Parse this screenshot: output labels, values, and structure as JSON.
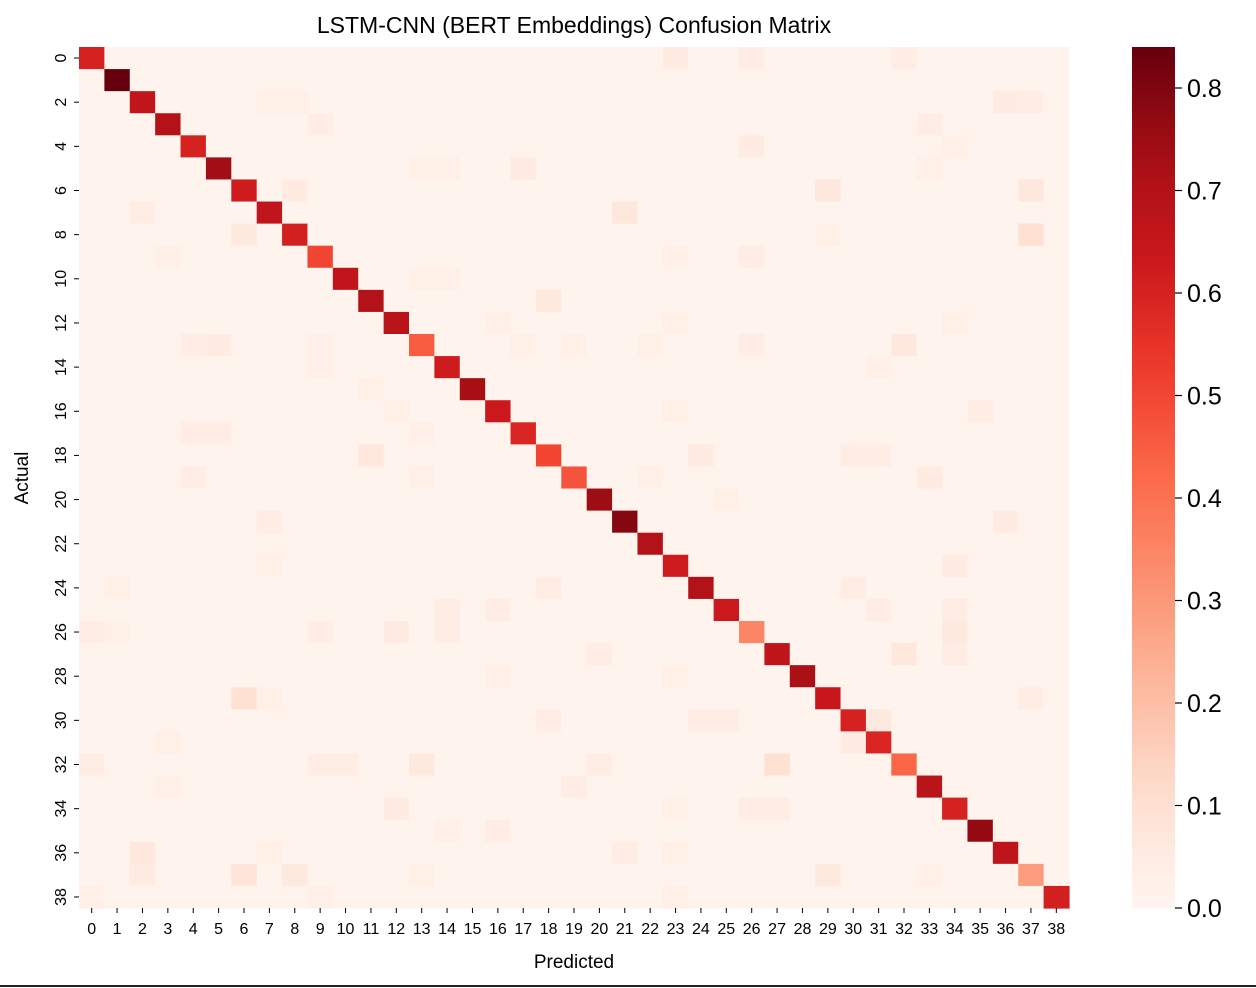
{
  "chart_data": {
    "type": "heatmap",
    "title": "LSTM-CNN (BERT Embeddings) Confusion Matrix",
    "xlabel": "Predicted",
    "ylabel": "Actual",
    "classes": 39,
    "x_tick_labels": [
      "0",
      "1",
      "2",
      "3",
      "4",
      "5",
      "6",
      "7",
      "8",
      "9",
      "10",
      "11",
      "12",
      "13",
      "14",
      "15",
      "16",
      "17",
      "18",
      "19",
      "20",
      "21",
      "22",
      "23",
      "24",
      "25",
      "26",
      "27",
      "28",
      "29",
      "30",
      "31",
      "32",
      "33",
      "34",
      "35",
      "36",
      "37",
      "38"
    ],
    "y_tick_labels": [
      "0",
      "2",
      "4",
      "6",
      "8",
      "10",
      "12",
      "14",
      "16",
      "18",
      "20",
      "22",
      "24",
      "26",
      "28",
      "30",
      "32",
      "34",
      "36",
      "38"
    ],
    "diagonal": [
      0.6,
      0.84,
      0.66,
      0.7,
      0.6,
      0.74,
      0.62,
      0.66,
      0.61,
      0.5,
      0.66,
      0.7,
      0.68,
      0.45,
      0.62,
      0.73,
      0.63,
      0.59,
      0.5,
      0.47,
      0.75,
      0.79,
      0.7,
      0.62,
      0.7,
      0.63,
      0.35,
      0.67,
      0.72,
      0.64,
      0.6,
      0.59,
      0.43,
      0.68,
      0.6,
      0.76,
      0.67,
      0.29,
      0.61
    ],
    "off_diagonal": [
      {
        "r": 0,
        "c": 23,
        "v": 0.05
      },
      {
        "r": 0,
        "c": 26,
        "v": 0.04
      },
      {
        "r": 0,
        "c": 32,
        "v": 0.04
      },
      {
        "r": 2,
        "c": 7,
        "v": 0.03
      },
      {
        "r": 2,
        "c": 8,
        "v": 0.03
      },
      {
        "r": 2,
        "c": 36,
        "v": 0.05
      },
      {
        "r": 2,
        "c": 37,
        "v": 0.04
      },
      {
        "r": 3,
        "c": 9,
        "v": 0.04
      },
      {
        "r": 3,
        "c": 33,
        "v": 0.04
      },
      {
        "r": 4,
        "c": 26,
        "v": 0.05
      },
      {
        "r": 4,
        "c": 34,
        "v": 0.03
      },
      {
        "r": 5,
        "c": 17,
        "v": 0.05
      },
      {
        "r": 5,
        "c": 13,
        "v": 0.03
      },
      {
        "r": 5,
        "c": 14,
        "v": 0.03
      },
      {
        "r": 5,
        "c": 33,
        "v": 0.03
      },
      {
        "r": 6,
        "c": 8,
        "v": 0.05
      },
      {
        "r": 6,
        "c": 29,
        "v": 0.07
      },
      {
        "r": 6,
        "c": 37,
        "v": 0.07
      },
      {
        "r": 7,
        "c": 21,
        "v": 0.07
      },
      {
        "r": 7,
        "c": 2,
        "v": 0.04
      },
      {
        "r": 8,
        "c": 6,
        "v": 0.06
      },
      {
        "r": 8,
        "c": 37,
        "v": 0.1
      },
      {
        "r": 8,
        "c": 29,
        "v": 0.03
      },
      {
        "r": 9,
        "c": 3,
        "v": 0.03
      },
      {
        "r": 9,
        "c": 26,
        "v": 0.04
      },
      {
        "r": 9,
        "c": 23,
        "v": 0.03
      },
      {
        "r": 10,
        "c": 13,
        "v": 0.03
      },
      {
        "r": 10,
        "c": 14,
        "v": 0.03
      },
      {
        "r": 11,
        "c": 18,
        "v": 0.06
      },
      {
        "r": 12,
        "c": 16,
        "v": 0.03
      },
      {
        "r": 12,
        "c": 23,
        "v": 0.03
      },
      {
        "r": 12,
        "c": 34,
        "v": 0.03
      },
      {
        "r": 13,
        "c": 4,
        "v": 0.04
      },
      {
        "r": 13,
        "c": 5,
        "v": 0.05
      },
      {
        "r": 13,
        "c": 9,
        "v": 0.03
      },
      {
        "r": 13,
        "c": 17,
        "v": 0.03
      },
      {
        "r": 13,
        "c": 19,
        "v": 0.03
      },
      {
        "r": 13,
        "c": 22,
        "v": 0.03
      },
      {
        "r": 13,
        "c": 26,
        "v": 0.04
      },
      {
        "r": 13,
        "c": 32,
        "v": 0.07
      },
      {
        "r": 14,
        "c": 9,
        "v": 0.03
      },
      {
        "r": 14,
        "c": 31,
        "v": 0.03
      },
      {
        "r": 15,
        "c": 11,
        "v": 0.03
      },
      {
        "r": 16,
        "c": 12,
        "v": 0.03
      },
      {
        "r": 16,
        "c": 23,
        "v": 0.03
      },
      {
        "r": 16,
        "c": 35,
        "v": 0.04
      },
      {
        "r": 17,
        "c": 4,
        "v": 0.04
      },
      {
        "r": 17,
        "c": 5,
        "v": 0.04
      },
      {
        "r": 17,
        "c": 13,
        "v": 0.03
      },
      {
        "r": 18,
        "c": 11,
        "v": 0.07
      },
      {
        "r": 18,
        "c": 24,
        "v": 0.05
      },
      {
        "r": 18,
        "c": 30,
        "v": 0.04
      },
      {
        "r": 18,
        "c": 31,
        "v": 0.04
      },
      {
        "r": 19,
        "c": 4,
        "v": 0.04
      },
      {
        "r": 19,
        "c": 13,
        "v": 0.03
      },
      {
        "r": 19,
        "c": 22,
        "v": 0.03
      },
      {
        "r": 19,
        "c": 33,
        "v": 0.05
      },
      {
        "r": 20,
        "c": 25,
        "v": 0.03
      },
      {
        "r": 21,
        "c": 7,
        "v": 0.04
      },
      {
        "r": 21,
        "c": 36,
        "v": 0.05
      },
      {
        "r": 23,
        "c": 7,
        "v": 0.03
      },
      {
        "r": 23,
        "c": 34,
        "v": 0.05
      },
      {
        "r": 24,
        "c": 1,
        "v": 0.03
      },
      {
        "r": 24,
        "c": 18,
        "v": 0.04
      },
      {
        "r": 24,
        "c": 30,
        "v": 0.04
      },
      {
        "r": 25,
        "c": 14,
        "v": 0.04
      },
      {
        "r": 25,
        "c": 16,
        "v": 0.04
      },
      {
        "r": 25,
        "c": 31,
        "v": 0.04
      },
      {
        "r": 25,
        "c": 34,
        "v": 0.04
      },
      {
        "r": 26,
        "c": 0,
        "v": 0.04
      },
      {
        "r": 26,
        "c": 1,
        "v": 0.03
      },
      {
        "r": 26,
        "c": 9,
        "v": 0.04
      },
      {
        "r": 26,
        "c": 12,
        "v": 0.05
      },
      {
        "r": 26,
        "c": 14,
        "v": 0.04
      },
      {
        "r": 26,
        "c": 34,
        "v": 0.06
      },
      {
        "r": 27,
        "c": 20,
        "v": 0.04
      },
      {
        "r": 27,
        "c": 32,
        "v": 0.07
      },
      {
        "r": 27,
        "c": 34,
        "v": 0.04
      },
      {
        "r": 28,
        "c": 16,
        "v": 0.03
      },
      {
        "r": 28,
        "c": 23,
        "v": 0.03
      },
      {
        "r": 29,
        "c": 6,
        "v": 0.1
      },
      {
        "r": 29,
        "c": 7,
        "v": 0.03
      },
      {
        "r": 29,
        "c": 37,
        "v": 0.04
      },
      {
        "r": 30,
        "c": 18,
        "v": 0.04
      },
      {
        "r": 30,
        "c": 24,
        "v": 0.04
      },
      {
        "r": 30,
        "c": 25,
        "v": 0.04
      },
      {
        "r": 30,
        "c": 31,
        "v": 0.06
      },
      {
        "r": 31,
        "c": 30,
        "v": 0.05
      },
      {
        "r": 31,
        "c": 3,
        "v": 0.03
      },
      {
        "r": 32,
        "c": 0,
        "v": 0.04
      },
      {
        "r": 32,
        "c": 9,
        "v": 0.04
      },
      {
        "r": 32,
        "c": 10,
        "v": 0.04
      },
      {
        "r": 32,
        "c": 13,
        "v": 0.06
      },
      {
        "r": 32,
        "c": 20,
        "v": 0.04
      },
      {
        "r": 32,
        "c": 27,
        "v": 0.1
      },
      {
        "r": 33,
        "c": 3,
        "v": 0.03
      },
      {
        "r": 33,
        "c": 19,
        "v": 0.04
      },
      {
        "r": 34,
        "c": 12,
        "v": 0.05
      },
      {
        "r": 34,
        "c": 26,
        "v": 0.04
      },
      {
        "r": 34,
        "c": 27,
        "v": 0.04
      },
      {
        "r": 34,
        "c": 23,
        "v": 0.03
      },
      {
        "r": 35,
        "c": 14,
        "v": 0.03
      },
      {
        "r": 35,
        "c": 16,
        "v": 0.04
      },
      {
        "r": 36,
        "c": 2,
        "v": 0.07
      },
      {
        "r": 36,
        "c": 7,
        "v": 0.03
      },
      {
        "r": 36,
        "c": 21,
        "v": 0.04
      },
      {
        "r": 36,
        "c": 23,
        "v": 0.03
      },
      {
        "r": 37,
        "c": 2,
        "v": 0.05
      },
      {
        "r": 37,
        "c": 6,
        "v": 0.08
      },
      {
        "r": 37,
        "c": 8,
        "v": 0.06
      },
      {
        "r": 37,
        "c": 13,
        "v": 0.03
      },
      {
        "r": 37,
        "c": 29,
        "v": 0.06
      },
      {
        "r": 37,
        "c": 33,
        "v": 0.03
      },
      {
        "r": 38,
        "c": 0,
        "v": 0.03
      },
      {
        "r": 38,
        "c": 9,
        "v": 0.03
      },
      {
        "r": 38,
        "c": 23,
        "v": 0.03
      }
    ],
    "background_value": 0.01,
    "colormap": "Reds",
    "vmin": 0.0,
    "vmax": 0.84,
    "colorbar_ticks": [
      0.0,
      0.1,
      0.2,
      0.3,
      0.4,
      0.5,
      0.6,
      0.7,
      0.8
    ],
    "colorbar_tick_labels": [
      "0.0",
      "0.1",
      "0.2",
      "0.3",
      "0.4",
      "0.5",
      "0.6",
      "0.7",
      "0.8"
    ],
    "colors": {
      "low": "#fff5f0",
      "high": "#67000d"
    }
  }
}
